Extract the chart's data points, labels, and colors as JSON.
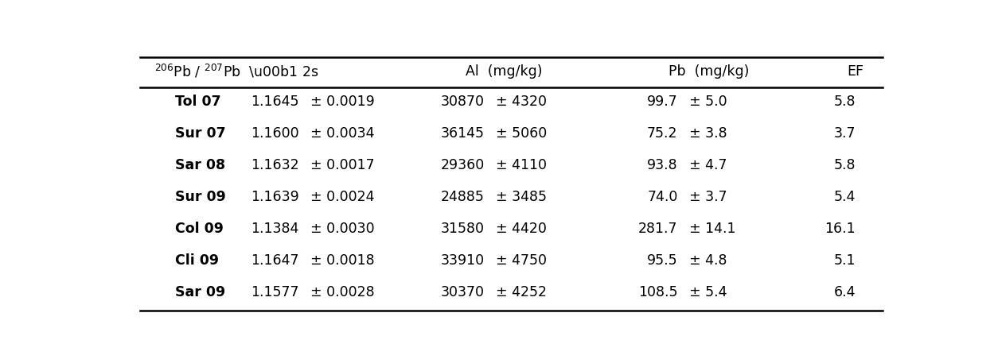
{
  "rows": [
    [
      "Tol 07",
      "1.1645",
      "± 0.0019",
      "30870",
      "± 4320",
      "99.7",
      "± 5.0",
      "5.8"
    ],
    [
      "Sur 07",
      "1.1600",
      "± 0.0034",
      "36145",
      "± 5060",
      "75.2",
      "± 3.8",
      "3.7"
    ],
    [
      "Sar 08",
      "1.1632",
      "± 0.0017",
      "29360",
      "± 4110",
      "93.8",
      "± 4.7",
      "5.8"
    ],
    [
      "Sur 09",
      "1.1639",
      "± 0.0024",
      "24885",
      "± 3485",
      "74.0",
      "± 3.7",
      "5.4"
    ],
    [
      "Col 09",
      "1.1384",
      "± 0.0030",
      "31580",
      "± 4420",
      "281.7",
      "± 14.1",
      "16.1"
    ],
    [
      "Cli 09",
      "1.1647",
      "± 0.0018",
      "33910",
      "± 4750",
      "95.5",
      "± 4.8",
      "5.1"
    ],
    [
      "Sar 09",
      "1.1577",
      "± 0.0028",
      "30370",
      "± 4252",
      "108.5",
      "± 5.4",
      "6.4"
    ]
  ],
  "bg_color": "#ffffff",
  "text_color": "#000000",
  "line_color": "#000000",
  "fontsize_header": 12.5,
  "fontsize_body": 12.5,
  "col_x": {
    "label": 0.065,
    "pb_val": 0.225,
    "pb_pm": 0.238,
    "al_val": 0.465,
    "al_pm": 0.478,
    "pb2_val": 0.715,
    "pb2_pm": 0.728,
    "ef": 0.945
  }
}
